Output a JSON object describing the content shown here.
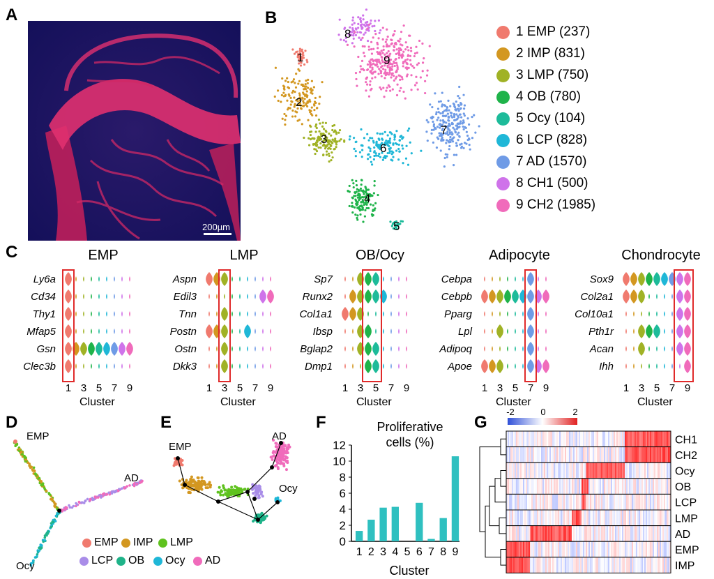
{
  "panels": {
    "A": "A",
    "B": "B",
    "C": "C",
    "D": "D",
    "E": "E",
    "F": "F",
    "G": "G"
  },
  "panel_a": {
    "scalebar_label": "200µm"
  },
  "panel_b": {
    "cluster_numbers": [
      "1",
      "2",
      "3",
      "4",
      "5",
      "6",
      "7",
      "8",
      "9"
    ],
    "legend": [
      {
        "label": "1 EMP (237)",
        "color": "#f07a6e"
      },
      {
        "label": "2 IMP (831)",
        "color": "#d39720"
      },
      {
        "label": "3 LMP (750)",
        "color": "#a0b225"
      },
      {
        "label": "4 OB (780)",
        "color": "#1fb34a"
      },
      {
        "label": "5 Ocy (104)",
        "color": "#1dbb9a"
      },
      {
        "label": "6 LCP (828)",
        "color": "#1fb7d7"
      },
      {
        "label": "7 AD (1570)",
        "color": "#6f9be6"
      },
      {
        "label": "8 CH1 (500)",
        "color": "#cf73ea"
      },
      {
        "label": "9 CH2 (1985)",
        "color": "#f06bbb"
      }
    ]
  },
  "panel_c": {
    "xlabel": "Cluster",
    "ticks": [
      "1",
      "3",
      "5",
      "7",
      "9"
    ],
    "groups": [
      {
        "title": "EMP",
        "genes": [
          "Ly6a",
          "Cd34",
          "Thy1",
          "Mfap5",
          "Gsn",
          "Clec3b"
        ]
      },
      {
        "title": "LMP",
        "genes": [
          "Aspn",
          "Edil3",
          "Tnn",
          "Postn",
          "Ostn",
          "Dkk3"
        ]
      },
      {
        "title": "OB/Ocy",
        "genes": [
          "Sp7",
          "Runx2",
          "Col1a1",
          "Ibsp",
          "Bglap2",
          "Dmp1"
        ]
      },
      {
        "title": "Adipocyte",
        "genes": [
          "Cebpa",
          "Cebpb",
          "Pparg",
          "Lpl",
          "Adipoq",
          "Apoe"
        ]
      },
      {
        "title": "Chondrocyte",
        "genes": [
          "Sox9",
          "Col2a1",
          "Col10a1",
          "Pth1r",
          "Acan",
          "Ihh"
        ]
      }
    ]
  },
  "panel_d": {
    "labels": {
      "emp": "EMP",
      "ad": "AD",
      "ocy": "Ocy"
    }
  },
  "panel_e": {
    "labels": {
      "emp": "EMP",
      "ad": "AD",
      "ocy": "Ocy"
    }
  },
  "legend_de": [
    {
      "label": "EMP",
      "color": "#f07a6e"
    },
    {
      "label": "IMP",
      "color": "#d39720"
    },
    {
      "label": "LMP",
      "color": "#5fc21e"
    },
    {
      "label": "LCP",
      "color": "#a98de8"
    },
    {
      "label": "OB",
      "color": "#1fb389"
    },
    {
      "label": "Ocy",
      "color": "#1fb7d7"
    },
    {
      "label": "AD",
      "color": "#f06bbb"
    }
  ],
  "chart_data": {
    "type": "bar",
    "title": "Proliferative cells (%)",
    "xlabel": "Cluster",
    "ylabel": "",
    "categories": [
      "1",
      "2",
      "3",
      "4",
      "5",
      "6",
      "7",
      "8",
      "9"
    ],
    "values": [
      1.3,
      2.7,
      4.2,
      4.3,
      0.0,
      4.8,
      0.3,
      2.9,
      10.6
    ],
    "ylim": [
      0,
      12
    ],
    "yticks": [
      "0",
      "2",
      "4",
      "6",
      "8",
      "10",
      "12"
    ],
    "bar_color": "#2fc0c0"
  },
  "panel_g": {
    "scale_ticks": [
      "-2",
      "0",
      "2"
    ],
    "rows": [
      "CH1",
      "CH2",
      "Ocy",
      "OB",
      "LCP",
      "LMP",
      "AD",
      "EMP",
      "IMP"
    ]
  }
}
